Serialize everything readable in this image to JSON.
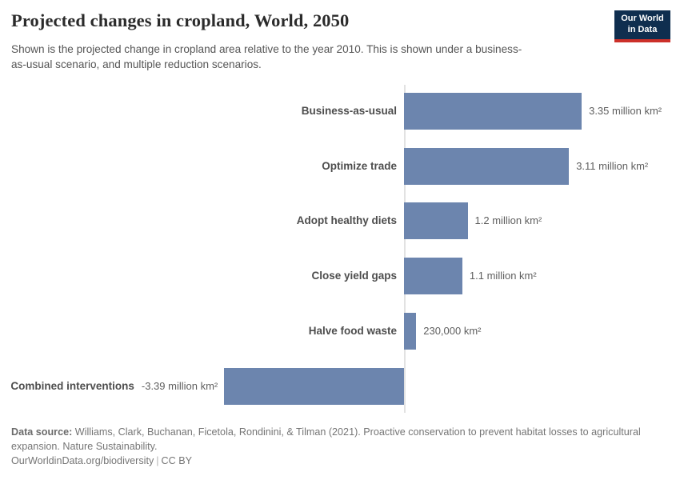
{
  "header": {
    "title": "Projected changes in cropland, World, 2050",
    "subtitle": "Shown is the projected change in cropland area relative to the year 2010. This is shown under a business-as-usual scenario, and multiple reduction scenarios.",
    "logo": {
      "line1": "Our World",
      "line2": "in Data"
    }
  },
  "chart_data": {
    "type": "bar",
    "orientation": "horizontal",
    "title": "Projected changes in cropland, World, 2050",
    "unit": "million km²",
    "categories": [
      "Business-as-usual",
      "Optimize trade",
      "Adopt healthy diets",
      "Close yield gaps",
      "Halve food waste",
      "Combined interventions"
    ],
    "values": [
      3.35,
      3.11,
      1.2,
      1.1,
      0.23,
      -3.39
    ],
    "value_labels": [
      "3.35 million km²",
      "3.11 million km²",
      "1.2 million km²",
      "1.1 million km²",
      "230,000 km²",
      "-3.39 million km²"
    ],
    "xlim": [
      -3.39,
      3.35
    ],
    "baseline": 0,
    "grid": false,
    "legend": false,
    "bar_color": "#6c85ae"
  },
  "footer": {
    "data_source_label": "Data source:",
    "data_source_text": "Williams, Clark, Buchanan, Ficetola, Rondinini, & Tilman (2021). Proactive conservation to prevent habitat losses to agricultural expansion. Nature Sustainability.",
    "url": "OurWorldinData.org/biodiversity",
    "separator": "|",
    "license": "CC BY"
  },
  "colors": {
    "bar": "#6c85ae",
    "logo_background": "#0f2e4f",
    "logo_red": "#cc3029",
    "axis_line": "#e2e2e2"
  }
}
